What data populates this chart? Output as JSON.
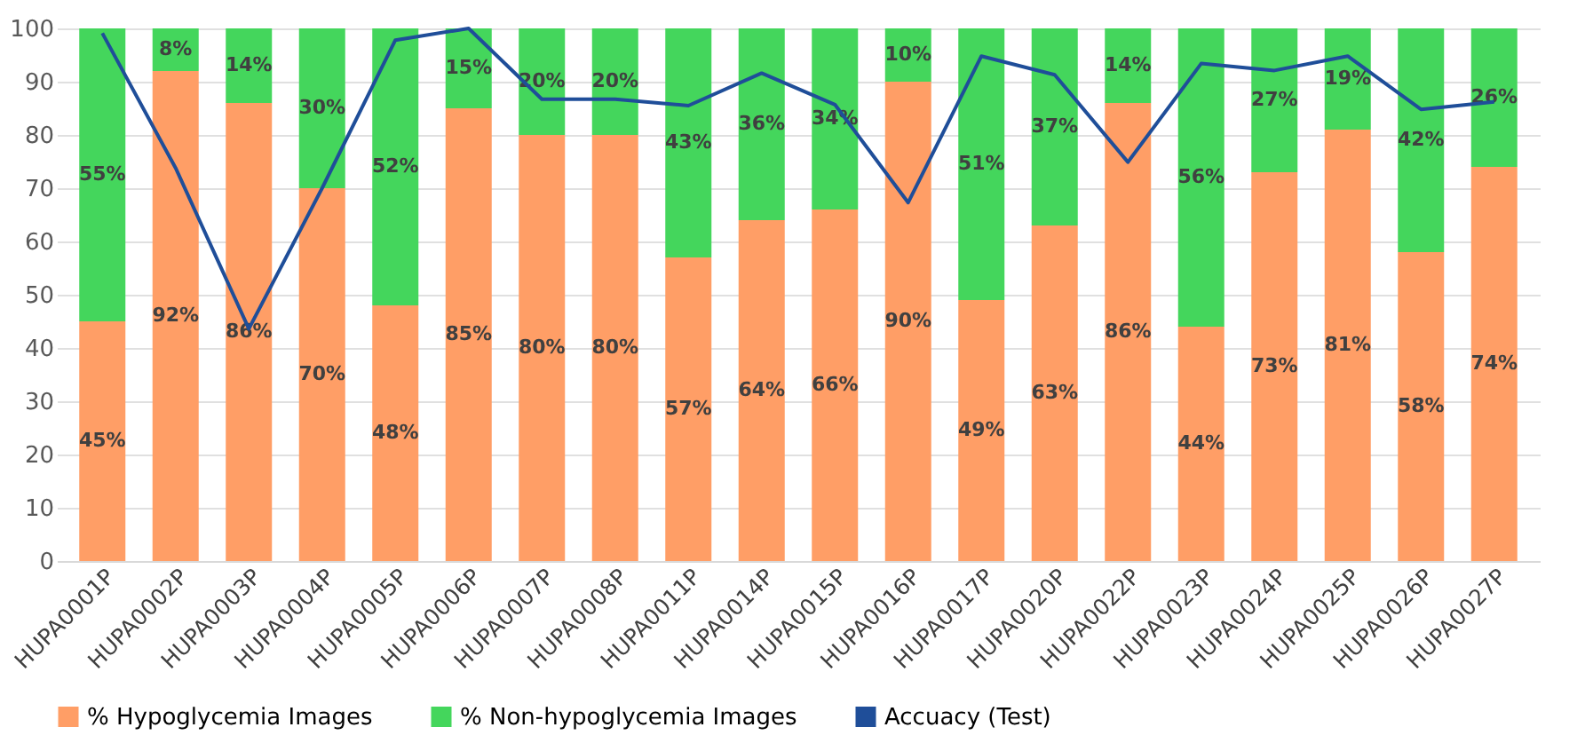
{
  "chart_data": {
    "type": "bar",
    "stacked": true,
    "categories": [
      "HUPA0001P",
      "HUPA0002P",
      "HUPA0003P",
      "HUPA0004P",
      "HUPA0005P",
      "HUPA0006P",
      "HUPA0007P",
      "HUPA0008P",
      "HUPA0011P",
      "HUPA0014P",
      "HUPA0015P",
      "HUPA0016P",
      "HUPA0017P",
      "HUPA0020P",
      "HUPA0022P",
      "HUPA0023P",
      "HUPA0024P",
      "HUPA0025P",
      "HUPA0026P",
      "HUPA0027P"
    ],
    "series": [
      {
        "name": "% Hypoglycemia Images",
        "color": "#ff9e66",
        "values": [
          45,
          92,
          86,
          70,
          48,
          85,
          80,
          80,
          57,
          64,
          66,
          90,
          49,
          63,
          86,
          44,
          73,
          81,
          58,
          74
        ],
        "value_labels": [
          "45%",
          "92%",
          "86%",
          "70%",
          "48%",
          "85%",
          "80%",
          "80%",
          "57%",
          "64%",
          "66%",
          "90%",
          "49%",
          "63%",
          "86%",
          "44%",
          "73%",
          "81%",
          "58%",
          "74%"
        ]
      },
      {
        "name": "% Non-hypoglycemia Images",
        "color": "#44d65c",
        "values": [
          55,
          8,
          14,
          30,
          52,
          15,
          20,
          20,
          43,
          36,
          34,
          10,
          51,
          37,
          14,
          56,
          27,
          19,
          42,
          26
        ],
        "value_labels": [
          "55%",
          "8%",
          "14%",
          "30%",
          "52%",
          "15%",
          "20%",
          "20%",
          "43%",
          "36%",
          "34%",
          "10%",
          "51%",
          "37%",
          "14%",
          "56%",
          "27%",
          "19%",
          "42%",
          "26%"
        ]
      },
      {
        "name": "Accuacy (Test)",
        "type": "line",
        "color": "#1f4e99",
        "values": [
          99.1,
          73.8,
          43.6,
          70,
          97.8,
          100,
          86.7,
          86.7,
          85.5,
          91.6,
          85.7,
          67.3,
          94.8,
          91.3,
          74.9,
          93.4,
          92.1,
          94.8,
          84.8,
          86.2
        ]
      }
    ],
    "ylim": [
      0,
      100
    ],
    "yticks": [
      0,
      10,
      20,
      30,
      40,
      50,
      60,
      70,
      80,
      90,
      100
    ],
    "grid": "y",
    "legend": "bottom",
    "marker": "none"
  }
}
